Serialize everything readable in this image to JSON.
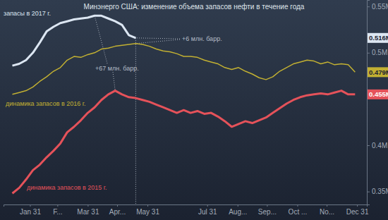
{
  "chart_data": {
    "type": "line",
    "title": "Минэнерго США: изменение объема запасов нефти в течение года",
    "x": [
      13,
      20,
      27,
      34,
      41,
      48,
      55,
      62,
      69,
      76,
      83,
      90,
      97,
      104,
      111,
      118,
      125,
      132,
      139,
      146,
      153,
      160,
      167,
      174,
      181,
      188,
      195,
      202,
      209,
      216,
      223,
      230,
      237,
      244,
      251,
      258,
      265,
      272,
      279,
      286,
      293,
      300,
      307,
      314,
      321,
      328,
      335,
      342,
      349,
      356,
      363
    ],
    "xlim": [
      4,
      375
    ],
    "xticks": [
      {
        "value": 31,
        "label": "Jan 31"
      },
      {
        "value": 59,
        "label": "F..."
      },
      {
        "value": 90,
        "label": "Mar 31"
      },
      {
        "value": 120,
        "label": "Apr..."
      },
      {
        "value": 151,
        "label": "May 31"
      },
      {
        "value": 212,
        "label": "Jul 31"
      },
      {
        "value": 243,
        "label": "Aug..."
      },
      {
        "value": 273,
        "label": "Sep..."
      },
      {
        "value": 304,
        "label": "Oct ..."
      },
      {
        "value": 334,
        "label": "No..."
      },
      {
        "value": 365,
        "label": "Dec 31"
      }
    ],
    "ylim": [
      0.336,
      0.557
    ],
    "yticks": [
      {
        "value": 0.35,
        "label": "0.35M"
      },
      {
        "value": 0.4,
        "label": "0.4M"
      },
      {
        "value": 0.5,
        "label": "0.5M"
      },
      {
        "value": 0.55,
        "label": "0.55M"
      }
    ],
    "grid": false,
    "series": [
      {
        "name": "запасы в 2017 г.",
        "color": "#dce6f2",
        "values": [
          0.486,
          0.488,
          0.492,
          0.5,
          0.511,
          0.523,
          0.528,
          0.532,
          0.534,
          0.536,
          0.537,
          0.538,
          0.54,
          0.54,
          0.537,
          0.534,
          0.53,
          0.519,
          0.516,
          null,
          null,
          null,
          null,
          null,
          null,
          null,
          null,
          null,
          null,
          null,
          null,
          null,
          null,
          null,
          null,
          null,
          null,
          null,
          null,
          null,
          null,
          null,
          null,
          null,
          null,
          null,
          null,
          null,
          null,
          null,
          null
        ],
        "value_labels": [
          null,
          null,
          null,
          null,
          null,
          null,
          null,
          null,
          null,
          null,
          null,
          null,
          null,
          null,
          null,
          null,
          null,
          null,
          "0.516M",
          null,
          null,
          null,
          null,
          null,
          null,
          null,
          null,
          null,
          null,
          null,
          null,
          null,
          null,
          null,
          null,
          null,
          null,
          null,
          null,
          null,
          null,
          null,
          null,
          null,
          null,
          null,
          null,
          null,
          null,
          null,
          null
        ]
      },
      {
        "name": "динамика запасов в 2016 г.",
        "color": "#c2b032",
        "values": [
          0.455,
          0.457,
          0.459,
          0.463,
          0.469,
          0.474,
          0.48,
          0.484,
          0.492,
          0.496,
          0.495,
          0.498,
          0.5,
          0.504,
          0.505,
          0.507,
          0.508,
          0.509,
          0.51,
          0.509,
          0.507,
          0.504,
          0.502,
          0.501,
          0.499,
          0.496,
          0.496,
          0.495,
          0.492,
          0.49,
          0.488,
          0.484,
          0.482,
          0.484,
          0.48,
          0.477,
          0.473,
          0.471,
          0.474,
          0.48,
          0.484,
          0.488,
          0.49,
          0.492,
          0.491,
          0.488,
          0.49,
          0.487,
          0.488,
          0.487,
          0.479
        ],
        "value_labels": [
          null,
          null,
          null,
          null,
          null,
          null,
          null,
          null,
          null,
          null,
          null,
          null,
          null,
          null,
          null,
          null,
          null,
          null,
          null,
          null,
          null,
          null,
          null,
          null,
          null,
          null,
          null,
          null,
          null,
          null,
          null,
          null,
          null,
          null,
          null,
          null,
          null,
          null,
          null,
          null,
          null,
          null,
          null,
          null,
          null,
          null,
          null,
          null,
          null,
          null,
          "0.479M"
        ]
      },
      {
        "name": "динамика запасов в 2015 г.",
        "color": "#e5525a",
        "values": [
          0.348,
          0.354,
          0.363,
          0.373,
          0.379,
          0.387,
          0.394,
          0.402,
          0.414,
          0.42,
          0.427,
          0.435,
          0.441,
          0.449,
          0.455,
          0.459,
          0.455,
          0.452,
          0.451,
          0.449,
          0.447,
          0.444,
          0.441,
          0.438,
          0.435,
          0.438,
          0.435,
          0.437,
          0.434,
          0.435,
          0.431,
          0.426,
          0.42,
          0.423,
          0.426,
          0.424,
          0.427,
          0.43,
          0.435,
          0.44,
          0.445,
          0.449,
          0.452,
          0.454,
          0.455,
          0.456,
          0.455,
          0.457,
          0.459,
          0.455,
          0.455
        ],
        "value_labels": [
          null,
          null,
          null,
          null,
          null,
          null,
          null,
          null,
          null,
          null,
          null,
          null,
          null,
          null,
          null,
          null,
          null,
          null,
          null,
          null,
          null,
          null,
          null,
          null,
          null,
          null,
          null,
          null,
          null,
          null,
          null,
          null,
          null,
          null,
          null,
          null,
          null,
          null,
          null,
          null,
          null,
          null,
          null,
          null,
          null,
          null,
          null,
          null,
          null,
          null,
          "0.455M"
        ]
      }
    ],
    "annotations": [
      "+6 млн. барр.",
      "+67 млн. барр."
    ]
  }
}
